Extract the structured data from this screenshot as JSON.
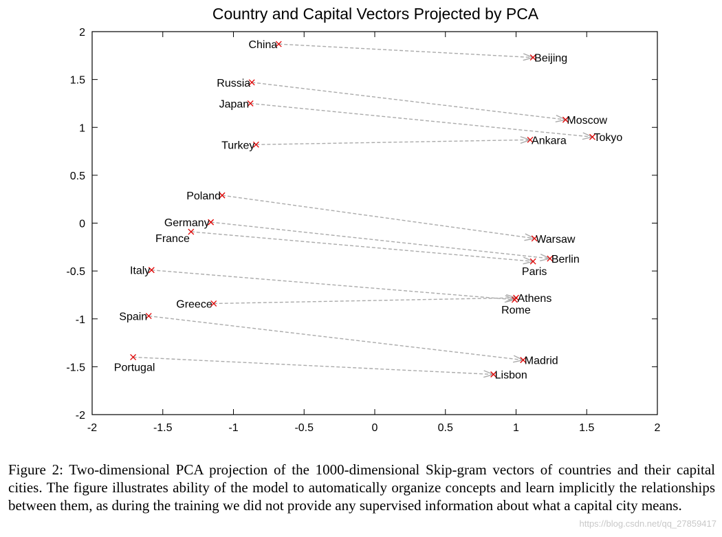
{
  "chart_data": {
    "type": "scatter",
    "title": "Country and Capital Vectors Projected by PCA",
    "xlim": [
      -2,
      2
    ],
    "ylim": [
      -2,
      2
    ],
    "x_ticks": [
      -2,
      -1.5,
      -1,
      -0.5,
      0,
      0.5,
      1,
      1.5,
      2
    ],
    "y_ticks": [
      2,
      1.5,
      1,
      0.5,
      0,
      -0.5,
      -1,
      -1.5,
      -2
    ],
    "x_tick_labels": [
      "-2",
      "-1.5",
      "-1",
      "-0.5",
      "0",
      "0.5",
      "1",
      "1.5",
      "2"
    ],
    "y_tick_labels": [
      "2",
      "1.5",
      "1",
      "0.5",
      "0",
      "-0.5",
      "-1",
      "-1.5",
      "-2"
    ],
    "grid": false,
    "points": [
      {
        "label": "China",
        "x": -0.68,
        "y": 1.87,
        "label_side": "left"
      },
      {
        "label": "Beijing",
        "x": 1.12,
        "y": 1.73,
        "label_side": "right"
      },
      {
        "label": "Russia",
        "x": -0.87,
        "y": 1.47,
        "label_side": "left"
      },
      {
        "label": "Japan",
        "x": -0.88,
        "y": 1.25,
        "label_side": "left"
      },
      {
        "label": "Moscow",
        "x": 1.35,
        "y": 1.08,
        "label_side": "right"
      },
      {
        "label": "Tokyo",
        "x": 1.54,
        "y": 0.9,
        "label_side": "right"
      },
      {
        "label": "Turkey",
        "x": -0.84,
        "y": 0.82,
        "label_side": "left"
      },
      {
        "label": "Ankara",
        "x": 1.1,
        "y": 0.87,
        "label_side": "right"
      },
      {
        "label": "Poland",
        "x": -1.08,
        "y": 0.29,
        "label_side": "left"
      },
      {
        "label": "Germany",
        "x": -1.16,
        "y": 0.01,
        "label_side": "left"
      },
      {
        "label": "France",
        "x": -1.3,
        "y": -0.09,
        "label_side": "below-left"
      },
      {
        "label": "Warsaw",
        "x": 1.13,
        "y": -0.16,
        "label_side": "right"
      },
      {
        "label": "Berlin",
        "x": 1.24,
        "y": -0.37,
        "label_side": "right"
      },
      {
        "label": "Paris",
        "x": 1.12,
        "y": -0.4,
        "label_side": "below"
      },
      {
        "label": "Italy",
        "x": -1.58,
        "y": -0.49,
        "label_side": "left"
      },
      {
        "label": "Greece",
        "x": -1.14,
        "y": -0.84,
        "label_side": "left"
      },
      {
        "label": "Athens",
        "x": 1.0,
        "y": -0.78,
        "label_side": "right"
      },
      {
        "label": "Rome",
        "x": 0.99,
        "y": -0.8,
        "label_side": "below"
      },
      {
        "label": "Spain",
        "x": -1.6,
        "y": -0.97,
        "label_side": "left"
      },
      {
        "label": "Madrid",
        "x": 1.05,
        "y": -1.43,
        "label_side": "right"
      },
      {
        "label": "Portugal",
        "x": -1.71,
        "y": -1.4,
        "label_side": "below"
      },
      {
        "label": "Lisbon",
        "x": 0.84,
        "y": -1.58,
        "label_side": "right"
      }
    ],
    "arrows": [
      {
        "from": "China",
        "to": "Beijing"
      },
      {
        "from": "Russia",
        "to": "Moscow"
      },
      {
        "from": "Japan",
        "to": "Tokyo"
      },
      {
        "from": "Turkey",
        "to": "Ankara"
      },
      {
        "from": "Poland",
        "to": "Warsaw"
      },
      {
        "from": "Germany",
        "to": "Berlin"
      },
      {
        "from": "France",
        "to": "Paris"
      },
      {
        "from": "Italy",
        "to": "Rome"
      },
      {
        "from": "Greece",
        "to": "Athens"
      },
      {
        "from": "Spain",
        "to": "Madrid"
      },
      {
        "from": "Portugal",
        "to": "Lisbon"
      }
    ],
    "colors": {
      "marker": "#e00000",
      "arrow": "#aaaaaa",
      "axis": "#000000",
      "text": "#000000"
    }
  },
  "caption": {
    "prefix": "Figure 2:",
    "text": " Two-dimensional PCA projection of the 1000-dimensional Skip-gram vectors of countries and their capital cities. The figure illustrates ability of the model to automatically organize concepts and learn implicitly the relationships between them, as during the training we did not provide any supervised information about what a capital city means."
  },
  "watermark": "https://blog.csdn.net/qq_27859417"
}
